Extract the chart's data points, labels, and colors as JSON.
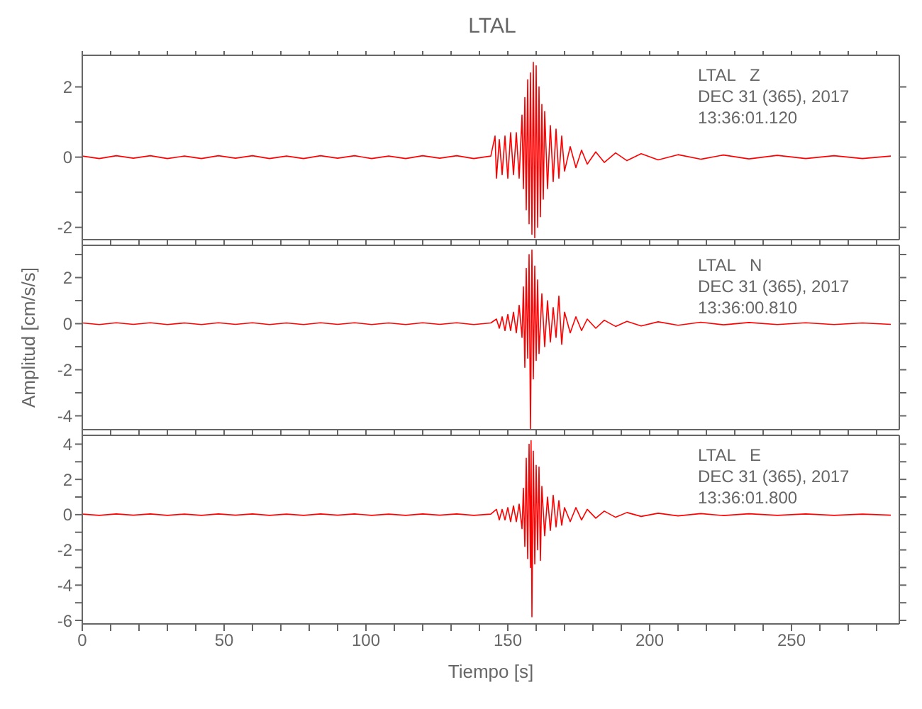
{
  "chart_data": [
    {
      "type": "line",
      "title": "LTAL",
      "color": "#ff0000",
      "marker": "none",
      "tick_labels": "y",
      "annotations": [
        "LTAL   Z",
        "DEC 31 (365), 2017",
        "13:36:01.120"
      ],
      "x": [
        0,
        6,
        12,
        18,
        24,
        30,
        36,
        42,
        48,
        54,
        60,
        66,
        72,
        78,
        84,
        90,
        96,
        102,
        108,
        114,
        120,
        126,
        132,
        138,
        144,
        145.5,
        146,
        147,
        148,
        149,
        150,
        151,
        152,
        153,
        154,
        155,
        155.5,
        156,
        156.5,
        157,
        157.5,
        158,
        158.5,
        159,
        159.5,
        160,
        160.5,
        161,
        161.5,
        162,
        162.5,
        163,
        164,
        165,
        166,
        167,
        168,
        169,
        170,
        172,
        174,
        176,
        178,
        181,
        184,
        188,
        192,
        197,
        203,
        210,
        218,
        226,
        235,
        245,
        255,
        265,
        275,
        285
      ],
      "values": [
        0.03,
        -0.04,
        0.04,
        -0.03,
        0.04,
        -0.04,
        0.03,
        -0.04,
        0.04,
        -0.03,
        0.04,
        -0.04,
        0.03,
        -0.04,
        0.04,
        -0.03,
        0.04,
        -0.04,
        0.03,
        -0.04,
        0.04,
        -0.03,
        0.04,
        -0.04,
        0.03,
        0.6,
        -0.6,
        0.5,
        -0.5,
        0.6,
        -0.6,
        0.7,
        -0.5,
        0.7,
        -0.6,
        1.2,
        -0.9,
        1.7,
        -1.5,
        2.2,
        -1.9,
        2.4,
        -2.2,
        2.7,
        -2.3,
        2.6,
        -2.0,
        2.0,
        -1.7,
        1.5,
        -1.2,
        1.3,
        -0.9,
        0.9,
        -0.7,
        0.8,
        -0.6,
        0.6,
        -0.4,
        0.3,
        -0.3,
        0.2,
        -0.2,
        0.15,
        -0.15,
        0.12,
        -0.1,
        0.1,
        -0.08,
        0.07,
        -0.06,
        0.06,
        -0.05,
        0.05,
        -0.04,
        0.04,
        -0.04,
        0.03
      ],
      "xlim": [
        0,
        288
      ],
      "xticks": [
        0,
        {
          "value": 10,
          "label": null
        },
        {
          "value": 20,
          "label": null
        },
        {
          "value": 30,
          "label": null
        },
        {
          "value": 40,
          "label": null
        },
        50,
        {
          "value": 60,
          "label": null
        },
        {
          "value": 70,
          "label": null
        },
        {
          "value": 80,
          "label": null
        },
        {
          "value": 90,
          "label": null
        },
        100,
        {
          "value": 110,
          "label": null
        },
        {
          "value": 120,
          "label": null
        },
        {
          "value": 130,
          "label": null
        },
        {
          "value": 140,
          "label": null
        },
        150,
        {
          "value": 160,
          "label": null
        },
        {
          "value": 170,
          "label": null
        },
        {
          "value": 180,
          "label": null
        },
        {
          "value": 190,
          "label": null
        },
        200,
        {
          "value": 210,
          "label": null
        },
        {
          "value": 220,
          "label": null
        },
        {
          "value": 230,
          "label": null
        },
        {
          "value": 240,
          "label": null
        },
        250,
        {
          "value": 260,
          "label": null
        },
        {
          "value": 270,
          "label": null
        },
        {
          "value": 280,
          "label": null
        }
      ],
      "ylim": [
        -2.35,
        2.9
      ],
      "yticks": [
        -2,
        {
          "value": -1,
          "label": null
        },
        0,
        {
          "value": 1,
          "label": null
        },
        2
      ]
    },
    {
      "type": "line",
      "ylabel": "Amplitud [cm/s/s]",
      "color": "#ff0000",
      "marker": "none",
      "tick_labels": "y",
      "annotations": [
        "LTAL   N",
        "DEC 31 (365), 2017",
        "13:36:00.810"
      ],
      "x": [
        0,
        6,
        12,
        18,
        24,
        30,
        36,
        42,
        48,
        54,
        60,
        66,
        72,
        78,
        84,
        90,
        96,
        102,
        108,
        114,
        120,
        126,
        132,
        138,
        144,
        146,
        147,
        148,
        149,
        150,
        151,
        152,
        153,
        154,
        155,
        155.5,
        156,
        156.5,
        157,
        157.5,
        158,
        158.5,
        159,
        159.5,
        160,
        160.5,
        161,
        162,
        163,
        164,
        165,
        166,
        167,
        168,
        169,
        170,
        172,
        174,
        176,
        178,
        181,
        184,
        188,
        192,
        197,
        203,
        210,
        218,
        226,
        235,
        245,
        255,
        265,
        275,
        285
      ],
      "values": [
        0.03,
        -0.04,
        0.04,
        -0.03,
        0.04,
        -0.04,
        0.03,
        -0.04,
        0.04,
        -0.03,
        0.04,
        -0.04,
        0.03,
        -0.04,
        0.04,
        -0.03,
        0.04,
        -0.04,
        0.03,
        -0.04,
        0.04,
        -0.03,
        0.04,
        -0.04,
        0.03,
        0.2,
        -0.2,
        0.3,
        -0.3,
        0.4,
        -0.3,
        0.5,
        -0.4,
        0.8,
        -0.6,
        1.6,
        -1.9,
        2.4,
        -1.5,
        3.0,
        -4.6,
        3.2,
        -2.4,
        2.5,
        -1.6,
        1.9,
        -1.3,
        1.3,
        -1.0,
        1.0,
        -0.8,
        0.7,
        -0.6,
        1.2,
        -0.9,
        0.5,
        -0.4,
        0.3,
        -0.3,
        0.2,
        -0.2,
        0.15,
        -0.12,
        0.1,
        -0.1,
        0.08,
        -0.07,
        0.06,
        -0.05,
        0.05,
        -0.04,
        0.04,
        -0.04,
        0.03,
        -0.03
      ],
      "xlim": [
        0,
        288
      ],
      "xticks": [
        0,
        {
          "value": 10,
          "label": null
        },
        {
          "value": 20,
          "label": null
        },
        {
          "value": 30,
          "label": null
        },
        {
          "value": 40,
          "label": null
        },
        50,
        {
          "value": 60,
          "label": null
        },
        {
          "value": 70,
          "label": null
        },
        {
          "value": 80,
          "label": null
        },
        {
          "value": 90,
          "label": null
        },
        100,
        {
          "value": 110,
          "label": null
        },
        {
          "value": 120,
          "label": null
        },
        {
          "value": 130,
          "label": null
        },
        {
          "value": 140,
          "label": null
        },
        150,
        {
          "value": 160,
          "label": null
        },
        {
          "value": 170,
          "label": null
        },
        {
          "value": 180,
          "label": null
        },
        {
          "value": 190,
          "label": null
        },
        200,
        {
          "value": 210,
          "label": null
        },
        {
          "value": 220,
          "label": null
        },
        {
          "value": 230,
          "label": null
        },
        {
          "value": 240,
          "label": null
        },
        250,
        {
          "value": 260,
          "label": null
        },
        {
          "value": 270,
          "label": null
        },
        {
          "value": 280,
          "label": null
        }
      ],
      "ylim": [
        -4.6,
        3.4
      ],
      "yticks": [
        -4,
        {
          "value": -3,
          "label": null
        },
        -2,
        {
          "value": -1,
          "label": null
        },
        0,
        {
          "value": 1,
          "label": null
        },
        2,
        {
          "value": 3,
          "label": null
        }
      ]
    },
    {
      "type": "line",
      "xlabel": "Tiempo [s]",
      "color": "#ff0000",
      "marker": "none",
      "annotations": [
        "LTAL   E",
        "DEC 31 (365), 2017",
        "13:36:01.800"
      ],
      "x": [
        0,
        6,
        12,
        18,
        24,
        30,
        36,
        42,
        48,
        54,
        60,
        66,
        72,
        78,
        84,
        90,
        96,
        102,
        108,
        114,
        120,
        126,
        132,
        138,
        144,
        146,
        147,
        148,
        149,
        150,
        151,
        152,
        153,
        154,
        155,
        155.5,
        156,
        156.5,
        157,
        157.5,
        158,
        158.2,
        158.5,
        159,
        159.5,
        160,
        160.5,
        161,
        161.5,
        162,
        163,
        164,
        165,
        166,
        167,
        168,
        169,
        170,
        172,
        174,
        176,
        178,
        181,
        184,
        188,
        192,
        197,
        203,
        210,
        218,
        226,
        235,
        245,
        255,
        265,
        275,
        285
      ],
      "values": [
        0.03,
        -0.04,
        0.04,
        -0.03,
        0.04,
        -0.04,
        0.03,
        -0.04,
        0.04,
        -0.03,
        0.04,
        -0.04,
        0.03,
        -0.04,
        0.04,
        -0.03,
        0.04,
        -0.04,
        0.03,
        -0.04,
        0.04,
        -0.03,
        0.04,
        -0.04,
        0.03,
        0.3,
        -0.3,
        0.3,
        -0.3,
        0.4,
        -0.4,
        0.5,
        -0.4,
        0.6,
        -0.8,
        1.5,
        -1.8,
        3.2,
        -2.5,
        4.0,
        -3.0,
        4.2,
        -5.8,
        3.6,
        -2.8,
        2.8,
        -2.0,
        2.7,
        -2.6,
        1.6,
        -1.2,
        1.0,
        -0.9,
        1.1,
        -0.7,
        0.8,
        -0.6,
        0.4,
        -0.4,
        0.4,
        -0.3,
        0.3,
        -0.2,
        0.2,
        -0.15,
        0.12,
        -0.1,
        0.08,
        -0.07,
        0.06,
        -0.05,
        0.05,
        -0.04,
        0.04,
        -0.04,
        0.03,
        -0.03
      ],
      "xlim": [
        0,
        288
      ],
      "xticks": [
        0,
        {
          "value": 10,
          "label": null
        },
        {
          "value": 20,
          "label": null
        },
        {
          "value": 30,
          "label": null
        },
        {
          "value": 40,
          "label": null
        },
        50,
        {
          "value": 60,
          "label": null
        },
        {
          "value": 70,
          "label": null
        },
        {
          "value": 80,
          "label": null
        },
        {
          "value": 90,
          "label": null
        },
        100,
        {
          "value": 110,
          "label": null
        },
        {
          "value": 120,
          "label": null
        },
        {
          "value": 130,
          "label": null
        },
        {
          "value": 140,
          "label": null
        },
        150,
        {
          "value": 160,
          "label": null
        },
        {
          "value": 170,
          "label": null
        },
        {
          "value": 180,
          "label": null
        },
        {
          "value": 190,
          "label": null
        },
        200,
        {
          "value": 210,
          "label": null
        },
        {
          "value": 220,
          "label": null
        },
        {
          "value": 230,
          "label": null
        },
        {
          "value": 240,
          "label": null
        },
        250,
        {
          "value": 260,
          "label": null
        },
        {
          "value": 270,
          "label": null
        },
        {
          "value": 280,
          "label": null
        }
      ],
      "ylim": [
        -6.2,
        4.5
      ],
      "yticks": [
        -6,
        {
          "value": -5,
          "label": null
        },
        -4,
        {
          "value": -3,
          "label": null
        },
        -2,
        {
          "value": -1,
          "label": null
        },
        0,
        {
          "value": 1,
          "label": null
        },
        2,
        {
          "value": 3,
          "label": null
        },
        4
      ]
    }
  ]
}
